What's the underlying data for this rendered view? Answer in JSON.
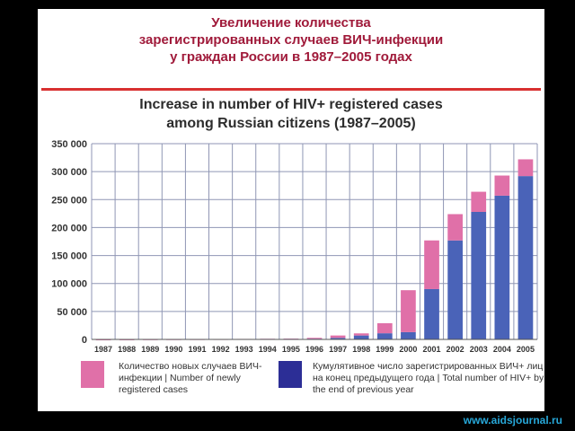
{
  "title_ru_lines": [
    "Увеличение количества",
    "зарегистрированных случаев ВИЧ-инфекции",
    "у граждан России в 1987–2005 годах"
  ],
  "title_en_lines": [
    "Increase in number of HIV+ registered cases",
    "among Russian citizens (1987–2005)"
  ],
  "legend": {
    "new": "Количество новых случаев ВИЧ-инфекции | Number of newly registered cases",
    "cumulative": "Кумулятивное число зарегистрированных ВИЧ+ лиц на конец предыдущего года | Total number of HIV+ by the end of previous year"
  },
  "credit": "www.aidsjournal.ru",
  "colors": {
    "cumulative": "#4a63b8",
    "new": "#e070a8",
    "legend_cumulative": "#2c2e96",
    "legend_new": "#e070a8",
    "title_ru": "#a01a3a",
    "rule": "#d83030",
    "credit": "#27a7d8",
    "grid": "#8f96b4"
  },
  "chart_data": {
    "type": "bar",
    "stacked": true,
    "categories": [
      "1987",
      "1988",
      "1989",
      "1990",
      "1991",
      "1992",
      "1993",
      "1994",
      "1995",
      "1996",
      "1997",
      "1998",
      "1999",
      "2000",
      "2001",
      "2002",
      "2003",
      "2004",
      "2005"
    ],
    "series": [
      {
        "name": "Кумулятивное число зарегистрированных ВИЧ+ лиц на конец предыдущего года | Total number of HIV+ by the end of previous year",
        "values": [
          0,
          100,
          200,
          400,
          500,
          600,
          700,
          900,
          1100,
          1300,
          2800,
          7000,
          11000,
          13000,
          90000,
          177000,
          228000,
          257000,
          292000
        ]
      },
      {
        "name": "Количество новых случаев ВИЧ-инфекции | Number of newly registered cases",
        "values": [
          100,
          100,
          200,
          100,
          100,
          100,
          200,
          200,
          200,
          1500,
          4200,
          3800,
          18000,
          75000,
          87000,
          47000,
          36000,
          36000,
          30000
        ]
      }
    ],
    "y_ticks": [
      "0",
      "50 000",
      "100 000",
      "150 000",
      "200 000",
      "250 000",
      "300 000",
      "350 000"
    ],
    "ylim": [
      0,
      350000
    ],
    "grid": true,
    "legend_position": "bottom"
  }
}
